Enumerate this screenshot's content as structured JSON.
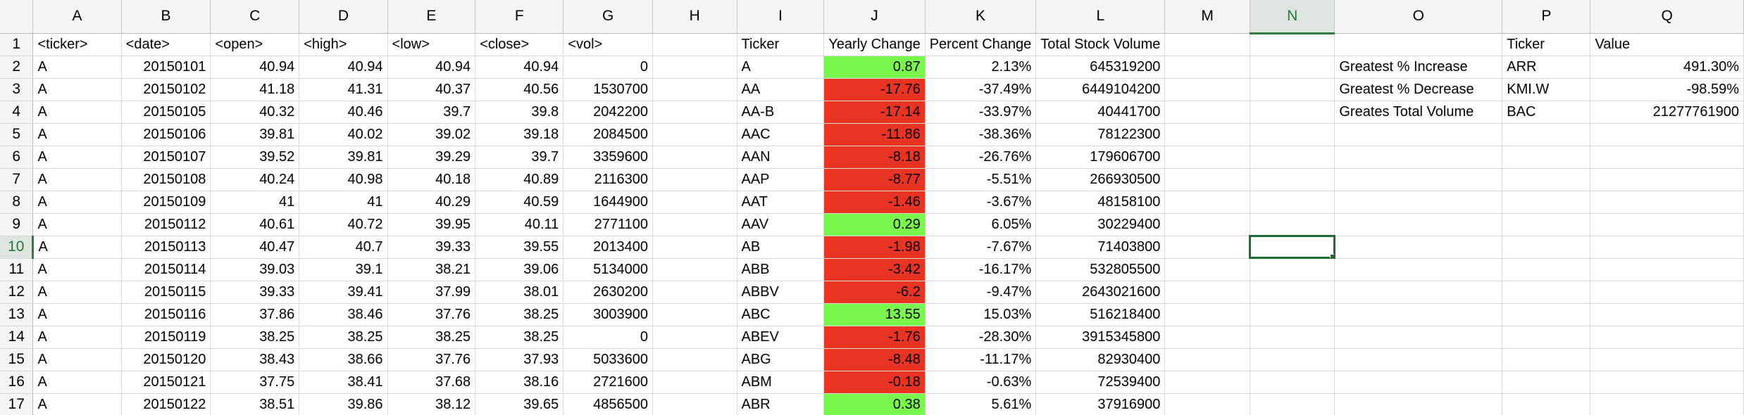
{
  "columns": [
    "A",
    "B",
    "C",
    "D",
    "E",
    "F",
    "G",
    "H",
    "I",
    "J",
    "K",
    "L",
    "M",
    "N",
    "O",
    "P",
    "Q"
  ],
  "selected_column": "N",
  "selected_row": 10,
  "header_row": [
    "<ticker>",
    "<date>",
    "<open>",
    "<high>",
    "<low>",
    "<close>",
    "<vol>",
    "",
    "Ticker",
    "Yearly Change",
    "Percent Change",
    "Total Stock Volume",
    "",
    "",
    "",
    "Ticker",
    "Value"
  ],
  "raw_rows": [
    [
      "A",
      "20150101",
      "40.94",
      "40.94",
      "40.94",
      "40.94",
      "0"
    ],
    [
      "A",
      "20150102",
      "41.18",
      "41.31",
      "40.37",
      "40.56",
      "1530700"
    ],
    [
      "A",
      "20150105",
      "40.32",
      "40.46",
      "39.7",
      "39.8",
      "2042200"
    ],
    [
      "A",
      "20150106",
      "39.81",
      "40.02",
      "39.02",
      "39.18",
      "2084500"
    ],
    [
      "A",
      "20150107",
      "39.52",
      "39.81",
      "39.29",
      "39.7",
      "3359600"
    ],
    [
      "A",
      "20150108",
      "40.24",
      "40.98",
      "40.18",
      "40.89",
      "2116300"
    ],
    [
      "A",
      "20150109",
      "41",
      "41",
      "40.29",
      "40.59",
      "1644900"
    ],
    [
      "A",
      "20150112",
      "40.61",
      "40.72",
      "39.95",
      "40.11",
      "2771100"
    ],
    [
      "A",
      "20150113",
      "40.47",
      "40.7",
      "39.33",
      "39.55",
      "2013400"
    ],
    [
      "A",
      "20150114",
      "39.03",
      "39.1",
      "38.21",
      "39.06",
      "5134000"
    ],
    [
      "A",
      "20150115",
      "39.33",
      "39.41",
      "37.99",
      "38.01",
      "2630200"
    ],
    [
      "A",
      "20150116",
      "37.86",
      "38.46",
      "37.76",
      "38.25",
      "3003900"
    ],
    [
      "A",
      "20150119",
      "38.25",
      "38.25",
      "38.25",
      "38.25",
      "0"
    ],
    [
      "A",
      "20150120",
      "38.43",
      "38.66",
      "37.76",
      "37.93",
      "5033600"
    ],
    [
      "A",
      "20150121",
      "37.75",
      "38.41",
      "37.68",
      "38.16",
      "2721600"
    ],
    [
      "A",
      "20150122",
      "38.51",
      "39.86",
      "38.12",
      "39.65",
      "4856500"
    ]
  ],
  "summary_rows": [
    {
      "ticker": "A",
      "change": "0.87",
      "percent": "2.13%",
      "volume": "645319200",
      "status": "pos"
    },
    {
      "ticker": "AA",
      "change": "-17.76",
      "percent": "-37.49%",
      "volume": "6449104200",
      "status": "neg"
    },
    {
      "ticker": "AA-B",
      "change": "-17.14",
      "percent": "-33.97%",
      "volume": "40441700",
      "status": "neg"
    },
    {
      "ticker": "AAC",
      "change": "-11.86",
      "percent": "-38.36%",
      "volume": "78122300",
      "status": "neg"
    },
    {
      "ticker": "AAN",
      "change": "-8.18",
      "percent": "-26.76%",
      "volume": "179606700",
      "status": "neg"
    },
    {
      "ticker": "AAP",
      "change": "-8.77",
      "percent": "-5.51%",
      "volume": "266930500",
      "status": "neg"
    },
    {
      "ticker": "AAT",
      "change": "-1.46",
      "percent": "-3.67%",
      "volume": "48158100",
      "status": "neg"
    },
    {
      "ticker": "AAV",
      "change": "0.29",
      "percent": "6.05%",
      "volume": "30229400",
      "status": "pos"
    },
    {
      "ticker": "AB",
      "change": "-1.98",
      "percent": "-7.67%",
      "volume": "71403800",
      "status": "neg"
    },
    {
      "ticker": "ABB",
      "change": "-3.42",
      "percent": "-16.17%",
      "volume": "532805500",
      "status": "neg"
    },
    {
      "ticker": "ABBV",
      "change": "-6.2",
      "percent": "-9.47%",
      "volume": "2643021600",
      "status": "neg"
    },
    {
      "ticker": "ABC",
      "change": "13.55",
      "percent": "15.03%",
      "volume": "516218400",
      "status": "pos"
    },
    {
      "ticker": "ABEV",
      "change": "-1.76",
      "percent": "-28.30%",
      "volume": "3915345800",
      "status": "neg"
    },
    {
      "ticker": "ABG",
      "change": "-8.48",
      "percent": "-11.17%",
      "volume": "82930400",
      "status": "neg"
    },
    {
      "ticker": "ABM",
      "change": "-0.18",
      "percent": "-0.63%",
      "volume": "72539400",
      "status": "neg"
    },
    {
      "ticker": "ABR",
      "change": "0.38",
      "percent": "5.61%",
      "volume": "37916900",
      "status": "pos"
    }
  ],
  "greatest": [
    {
      "label": "Greatest % Increase",
      "ticker": "ARR",
      "value": "491.30%"
    },
    {
      "label": "Greatest % Decrease",
      "ticker": "KMI.W",
      "value": "-98.59%"
    },
    {
      "label": "Greates Total Volume",
      "ticker": "BAC",
      "value": "21277761900"
    }
  ],
  "colors": {
    "positive": "#79f74f",
    "negative": "#e93323",
    "selection": "#1e6b35"
  }
}
